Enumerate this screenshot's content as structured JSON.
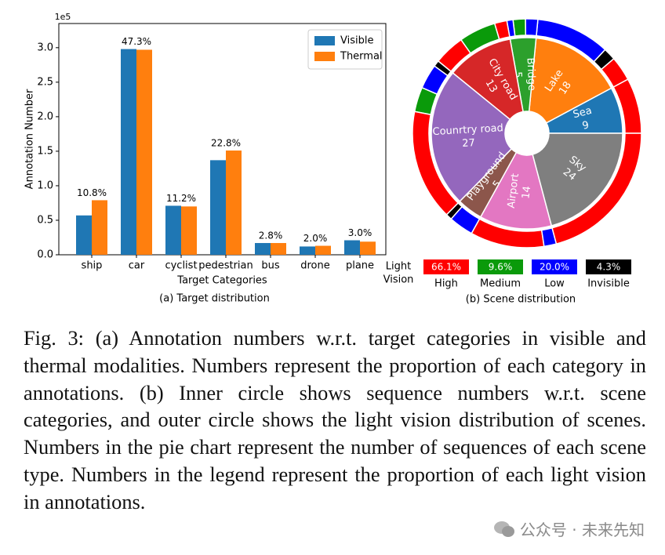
{
  "chart_data": [
    {
      "type": "bar",
      "categories": [
        "ship",
        "car",
        "cyclist",
        "pedestrian",
        "bus",
        "drone",
        "plane"
      ],
      "series": [
        {
          "name": "Visible",
          "color": "#1f77b4",
          "values": [
            0.57,
            2.98,
            0.71,
            1.37,
            0.17,
            0.12,
            0.21
          ]
        },
        {
          "name": "Thermal",
          "color": "#ff7f0e",
          "values": [
            0.79,
            2.97,
            0.7,
            1.51,
            0.17,
            0.13,
            0.19
          ]
        }
      ],
      "percent_labels": [
        "10.8%",
        "47.3%",
        "11.2%",
        "22.8%",
        "2.8%",
        "2.0%",
        "3.0%"
      ],
      "ylim": [
        0,
        3.35
      ],
      "yticks": [
        {
          "value": 0,
          "label": "0.0"
        },
        {
          "value": 0.5,
          "label": "0.5"
        },
        {
          "value": 1,
          "label": "1.0"
        },
        {
          "value": 1.5,
          "label": "1.5"
        },
        {
          "value": 2,
          "label": "2.0"
        },
        {
          "value": 2.5,
          "label": "2.5"
        },
        {
          "value": 3,
          "label": "3.0"
        }
      ],
      "y_scale_label": "1e5",
      "xlabel": "Target Categories",
      "ylabel": "Annotation Number",
      "legend": "upper right",
      "subcaption": "(a) Target distribution"
    },
    {
      "type": "pie",
      "categories": [
        "Sea",
        "Lake",
        "Bridge",
        "City road",
        "Counrtry road",
        "Playground",
        "Airport",
        "Sky"
      ],
      "values": [
        9,
        18,
        5,
        13,
        27,
        5,
        14,
        24
      ],
      "colors": [
        "#1f77b4",
        "#ff7f0e",
        "#2ca02c",
        "#d62728",
        "#9467bd",
        "#8c564b",
        "#e377c2",
        "#7f7f7f"
      ],
      "outer_ring": {
        "values": [
          9,
          4,
          2,
          12,
          2,
          2,
          1,
          2,
          6,
          5,
          1,
          4,
          4,
          18,
          1,
          4,
          12,
          2,
          24
        ],
        "colors": [
          "#ff0000",
          "#ff0000",
          "#000000",
          "#0000ff",
          "#0000ff",
          "#0a9a0a",
          "#0000ff",
          "#ff0000",
          "#0a9a0a",
          "#ff0000",
          "#000000",
          "#0000ff",
          "#0a9a0a",
          "#ff0000",
          "#000000",
          "#0000ff",
          "#ff0000",
          "#0000ff",
          "#ff0000"
        ]
      },
      "legend_title": [
        "Light",
        "Vision"
      ],
      "legend": {
        "names": [
          "High",
          "Medium",
          "Low",
          "Invisible"
        ],
        "colors": [
          "#ff0000",
          "#0a9a0a",
          "#0000ff",
          "#000000"
        ],
        "values": [
          66.1,
          9.6,
          20.0,
          4.3
        ],
        "value_labels": [
          "66.1%",
          "9.6%",
          "20.0%",
          "4.3%"
        ]
      },
      "subcaption": "(b) Scene distribution"
    }
  ],
  "caption": "Fig. 3: (a) Annotation numbers w.r.t. target categories in visible and thermal modalities. Numbers represent the proportion of each category in annotations. (b) Inner circle shows sequence numbers w.r.t. scene categories, and outer circle shows the light vision distribution of scenes. Numbers in the pie chart represent the number of sequences of each scene type. Numbers in the legend represent the proportion of each light vision in annotations.",
  "watermark": "公众号 · 未来先知"
}
